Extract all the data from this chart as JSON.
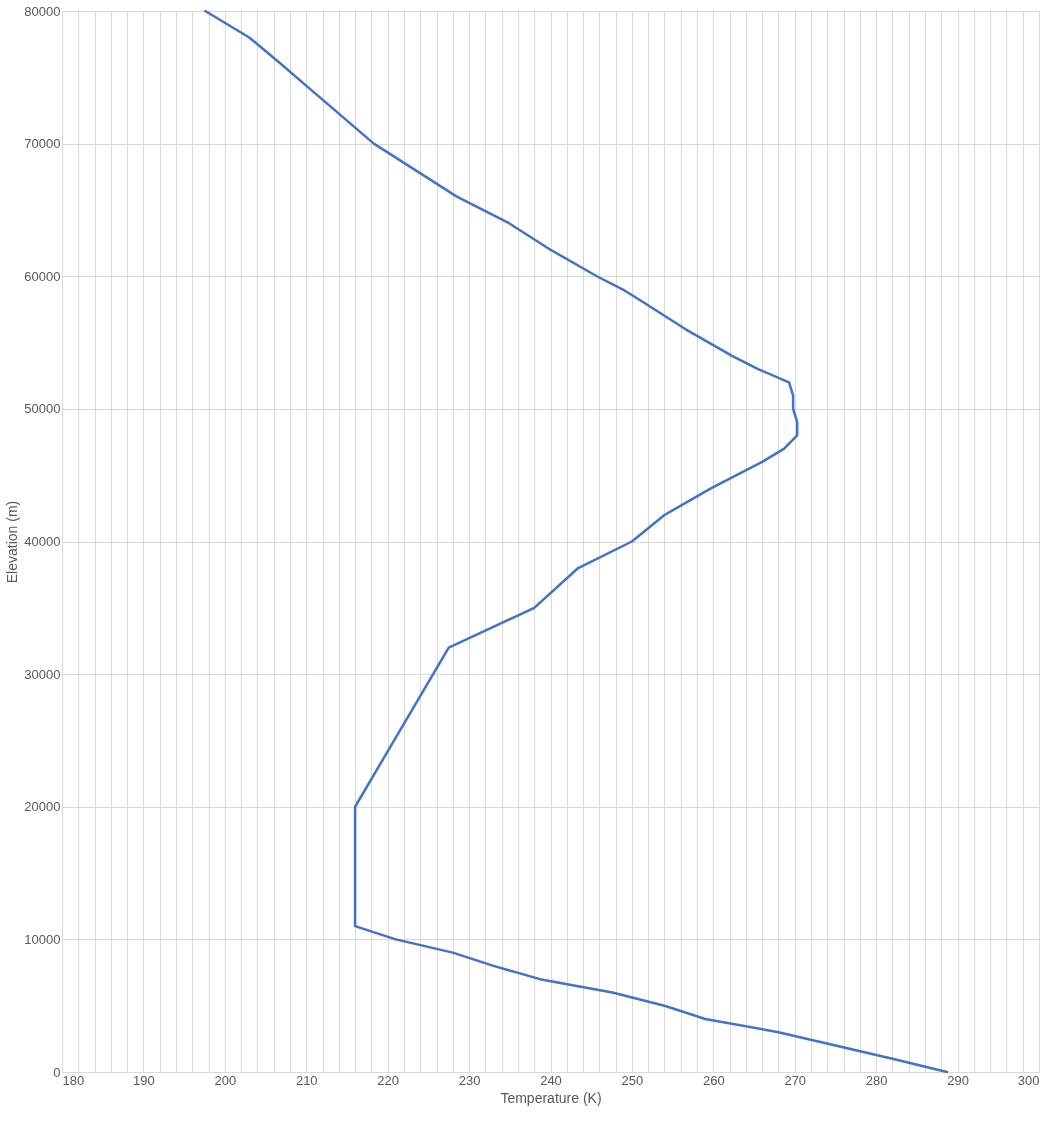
{
  "chart_data": {
    "type": "line",
    "xlabel": "Temperature (K)",
    "ylabel": "Elevation (m)",
    "grid": true,
    "marker": "none",
    "line_style": "solid",
    "xlim": [
      180,
      300
    ],
    "ylim": [
      0,
      80000
    ],
    "xticks": [
      180,
      {
        "value": 182,
        "label": null
      },
      {
        "value": 184,
        "label": null
      },
      {
        "value": 186,
        "label": null
      },
      {
        "value": 188,
        "label": null
      },
      190,
      {
        "value": 192,
        "label": null
      },
      {
        "value": 194,
        "label": null
      },
      {
        "value": 196,
        "label": null
      },
      {
        "value": 198,
        "label": null
      },
      200,
      {
        "value": 202,
        "label": null
      },
      {
        "value": 204,
        "label": null
      },
      {
        "value": 206,
        "label": null
      },
      {
        "value": 208,
        "label": null
      },
      210,
      {
        "value": 212,
        "label": null
      },
      {
        "value": 214,
        "label": null
      },
      {
        "value": 216,
        "label": null
      },
      {
        "value": 218,
        "label": null
      },
      220,
      {
        "value": 222,
        "label": null
      },
      {
        "value": 224,
        "label": null
      },
      {
        "value": 226,
        "label": null
      },
      {
        "value": 228,
        "label": null
      },
      230,
      {
        "value": 232,
        "label": null
      },
      {
        "value": 234,
        "label": null
      },
      {
        "value": 236,
        "label": null
      },
      {
        "value": 238,
        "label": null
      },
      240,
      {
        "value": 242,
        "label": null
      },
      {
        "value": 244,
        "label": null
      },
      {
        "value": 246,
        "label": null
      },
      {
        "value": 248,
        "label": null
      },
      250,
      {
        "value": 252,
        "label": null
      },
      {
        "value": 254,
        "label": null
      },
      {
        "value": 256,
        "label": null
      },
      {
        "value": 258,
        "label": null
      },
      260,
      {
        "value": 262,
        "label": null
      },
      {
        "value": 264,
        "label": null
      },
      {
        "value": 266,
        "label": null
      },
      {
        "value": 268,
        "label": null
      },
      270,
      {
        "value": 272,
        "label": null
      },
      {
        "value": 274,
        "label": null
      },
      {
        "value": 276,
        "label": null
      },
      {
        "value": 278,
        "label": null
      },
      280,
      {
        "value": 282,
        "label": null
      },
      {
        "value": 284,
        "label": null
      },
      {
        "value": 286,
        "label": null
      },
      {
        "value": 288,
        "label": null
      },
      290,
      {
        "value": 292,
        "label": null
      },
      {
        "value": 294,
        "label": null
      },
      {
        "value": 296,
        "label": null
      },
      {
        "value": 298,
        "label": null
      },
      300
    ],
    "yticks": [
      0,
      10000,
      20000,
      30000,
      40000,
      50000,
      60000,
      70000,
      80000
    ],
    "series": [
      {
        "color": "#4472c4",
        "x": [
          288.7,
          282,
          275,
          268,
          259,
          254,
          247.6,
          238.7,
          233,
          228,
          221,
          216,
          216,
          227.5,
          231,
          238,
          243.4,
          250,
          254,
          259.7,
          266,
          268.7,
          270.3,
          270.3,
          269.8,
          269.8,
          269.3,
          265.5,
          262.3,
          256.6,
          251.5,
          248.9,
          245.7,
          240,
          234.9,
          228.5,
          223.4,
          218.3,
          214.5,
          210.7,
          206.9,
          203,
          197.6
        ],
        "values": [
          0,
          1000,
          2000,
          3000,
          4000,
          5000,
          6000,
          7000,
          8000,
          9000,
          10000,
          11000,
          20000,
          32000,
          33000,
          35000,
          38000,
          40000,
          42000,
          44000,
          46000,
          47000,
          48000,
          49000,
          50000,
          51000,
          52000,
          53000,
          54000,
          56000,
          58000,
          59000,
          60000,
          62000,
          64000,
          66000,
          68000,
          70000,
          72000,
          74000,
          76000,
          78000,
          80000
        ]
      }
    ]
  }
}
